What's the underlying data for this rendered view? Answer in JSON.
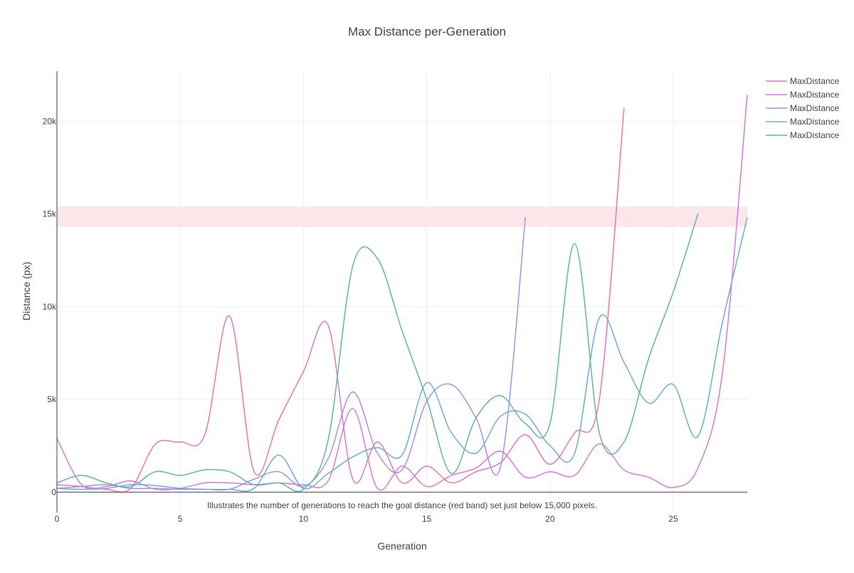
{
  "chart_data": {
    "type": "line",
    "title": "Max Distance per-Generation",
    "xlabel": "Generation",
    "ylabel": "Distance (px)",
    "xlim": [
      0,
      28
    ],
    "ylim": [
      -1100,
      22700
    ],
    "x_ticks": [
      0,
      5,
      10,
      15,
      20,
      25
    ],
    "x_tick_labels": [
      "0",
      "5",
      "10",
      "15",
      "20",
      "25"
    ],
    "y_ticks": [
      0,
      5000,
      10000,
      15000,
      20000
    ],
    "y_tick_labels": [
      "0",
      "5k",
      "10k",
      "15k",
      "20k"
    ],
    "grid": true,
    "legend_position": "top-right",
    "goal_band": {
      "y0": 14300,
      "y1": 15400,
      "color": "#fde6ea"
    },
    "annotation": "Illustrates the number of generations to reach the goal distance (red band) set just below 15,000 pixels.",
    "series": [
      {
        "name": "MaxDistance",
        "color": "#e377c2",
        "x": [
          0,
          1,
          2,
          3,
          4,
          5,
          6,
          7,
          8,
          9,
          10,
          11,
          12,
          13,
          14,
          15,
          16,
          17,
          18,
          19,
          20,
          21,
          22,
          23
        ],
        "y": [
          400,
          300,
          150,
          200,
          2600,
          2700,
          3100,
          9500,
          1100,
          3900,
          6500,
          9000,
          700,
          2700,
          500,
          1400,
          500,
          1100,
          1600,
          3100,
          1500,
          3200,
          5000,
          20700
        ]
      },
      {
        "name": "MaxDistance",
        "color": "#d67ae0",
        "x": [
          0,
          1,
          2,
          3,
          4,
          5,
          6,
          7,
          8,
          9,
          10,
          11,
          12,
          13,
          14,
          15,
          16,
          17,
          18,
          19,
          20,
          21,
          22,
          23,
          24,
          25,
          26,
          27,
          28
        ],
        "y": [
          2900,
          400,
          300,
          600,
          150,
          200,
          500,
          500,
          400,
          500,
          400,
          600,
          4500,
          200,
          1400,
          300,
          900,
          1300,
          2200,
          800,
          1100,
          900,
          2600,
          1200,
          800,
          250,
          1300,
          6500,
          21400
        ]
      },
      {
        "name": "MaxDistance",
        "color": "#a98ee8",
        "x": [
          0,
          1,
          2,
          3,
          4,
          5,
          6,
          7,
          8,
          9,
          10,
          11,
          12,
          13,
          14,
          15,
          16,
          17,
          18,
          19
        ],
        "y": [
          200,
          300,
          400,
          200,
          200,
          150,
          150,
          150,
          700,
          1100,
          300,
          1800,
          5400,
          2100,
          1200,
          4900,
          5800,
          4000,
          1400,
          14800
        ]
      },
      {
        "name": "MaxDistance",
        "color": "#6baed6",
        "x": [
          0,
          1,
          2,
          3,
          4,
          5,
          6,
          7,
          8,
          9,
          10,
          11,
          12,
          13,
          14,
          15,
          16,
          17,
          18,
          19,
          20,
          21,
          22,
          23,
          24,
          25,
          26,
          27,
          28
        ],
        "y": [
          200,
          150,
          200,
          400,
          350,
          200,
          150,
          150,
          200,
          2000,
          200,
          1000,
          1900,
          2400,
          2000,
          5900,
          3200,
          2100,
          4100,
          4200,
          2500,
          2100,
          9400,
          7000,
          4800,
          5800,
          3000,
          9200,
          14800
        ]
      },
      {
        "name": "MaxDistance",
        "color": "#5fb8a1",
        "x": [
          0,
          1,
          2,
          3,
          4,
          5,
          6,
          7,
          8,
          9,
          10,
          11,
          12,
          13,
          14,
          15,
          16,
          17,
          18,
          19,
          20,
          21,
          22,
          23,
          24,
          25,
          26
        ],
        "y": [
          500,
          900,
          500,
          300,
          1100,
          900,
          1200,
          1100,
          400,
          500,
          150,
          2800,
          12200,
          12600,
          8700,
          5000,
          1000,
          4000,
          5200,
          3700,
          3700,
          13400,
          3200,
          2700,
          7200,
          10800,
          15000
        ]
      }
    ]
  }
}
